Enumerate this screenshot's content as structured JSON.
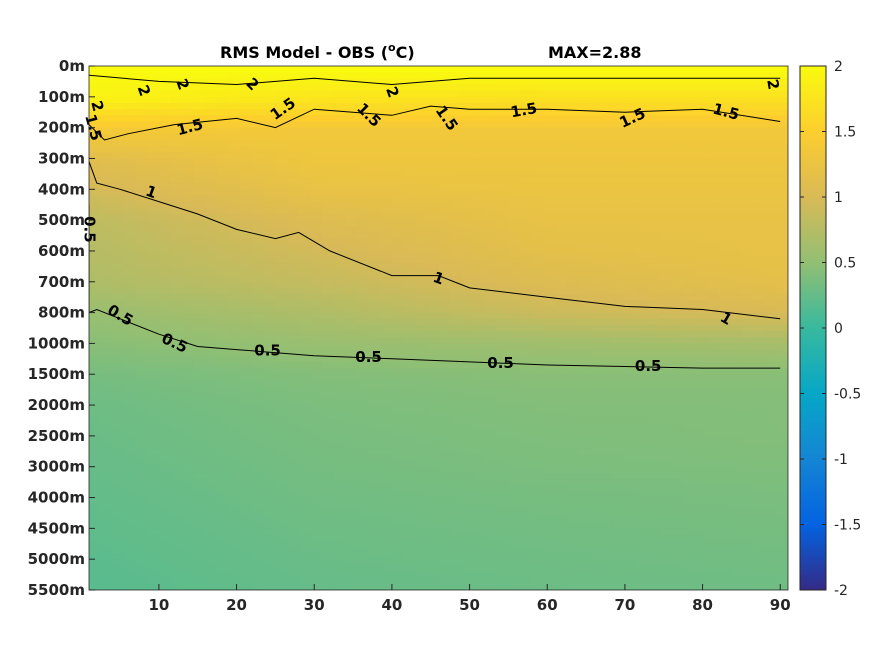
{
  "chart_data": {
    "type": "heatmap",
    "title": "RMS Model - OBS (",
    "title_unit_sup": "o",
    "title_unit_tail": "C)",
    "max_label": "MAX=2.88",
    "x_ticks": [
      10,
      20,
      30,
      40,
      50,
      60,
      70,
      80,
      90
    ],
    "xlim": [
      1,
      91
    ],
    "y_tick_labels": [
      "0m",
      "100m",
      "200m",
      "300m",
      "400m",
      "500m",
      "600m",
      "700m",
      "800m",
      "1000m",
      "1500m",
      "2000m",
      "2500m",
      "3000m",
      "4000m",
      "4500m",
      "5000m",
      "5500m"
    ],
    "colorbar": {
      "ticks": [
        2,
        1.5,
        1,
        0.5,
        0,
        -0.5,
        -1,
        -1.5,
        -2
      ],
      "tick_labels": [
        "2",
        "1.5",
        "1",
        "0.5",
        "0",
        "-0.5",
        "-1",
        "-1.5",
        "-2"
      ],
      "clim": [
        -2,
        2
      ],
      "colormap": "parula",
      "colormap_stops": [
        "#352a87",
        "#0363e1",
        "#1485d4",
        "#06a7c6",
        "#38b99e",
        "#92bf73",
        "#d9ba56",
        "#fcce2e",
        "#f9fb0e"
      ]
    },
    "field": {
      "description_levels_index": "values per depth level index 0..17 at x = 1, 30, 60, 90",
      "x_samples": [
        1,
        30,
        60,
        90
      ],
      "rows": [
        [
          2.0,
          2.0,
          2.0,
          2.0
        ],
        [
          1.9,
          1.75,
          1.7,
          1.7
        ],
        [
          1.4,
          1.35,
          1.35,
          1.35
        ],
        [
          1.1,
          1.3,
          1.3,
          1.3
        ],
        [
          0.95,
          1.2,
          1.25,
          1.25
        ],
        [
          0.8,
          1.05,
          1.2,
          1.2
        ],
        [
          0.75,
          0.95,
          1.15,
          1.2
        ],
        [
          0.7,
          0.85,
          1.05,
          1.15
        ],
        [
          0.55,
          0.7,
          0.9,
          1.0
        ],
        [
          0.45,
          0.55,
          0.6,
          0.65
        ],
        [
          0.35,
          0.42,
          0.45,
          0.45
        ],
        [
          0.3,
          0.38,
          0.42,
          0.42
        ],
        [
          0.28,
          0.36,
          0.4,
          0.42
        ],
        [
          0.26,
          0.34,
          0.38,
          0.4
        ],
        [
          0.24,
          0.32,
          0.35,
          0.37
        ],
        [
          0.22,
          0.3,
          0.33,
          0.35
        ],
        [
          0.2,
          0.28,
          0.31,
          0.33
        ],
        [
          0.18,
          0.26,
          0.29,
          0.31
        ]
      ]
    },
    "contours": [
      {
        "level": "2",
        "points": [
          [
            1,
            0.3
          ],
          [
            10,
            0.5
          ],
          [
            20,
            0.6
          ],
          [
            30,
            0.4
          ],
          [
            40,
            0.6
          ],
          [
            50,
            0.4
          ],
          [
            60,
            0.4
          ],
          [
            70,
            0.4
          ],
          [
            80,
            0.4
          ],
          [
            90,
            0.4
          ]
        ]
      },
      {
        "level": "1.5",
        "points": [
          [
            1,
            1.9
          ],
          [
            3,
            2.4
          ],
          [
            6,
            2.2
          ],
          [
            12,
            1.9
          ],
          [
            20,
            1.7
          ],
          [
            25,
            2.0
          ],
          [
            30,
            1.4
          ],
          [
            40,
            1.6
          ],
          [
            45,
            1.3
          ],
          [
            50,
            1.4
          ],
          [
            60,
            1.4
          ],
          [
            70,
            1.5
          ],
          [
            80,
            1.4
          ],
          [
            90,
            1.8
          ]
        ]
      },
      {
        "level": "1",
        "points": [
          [
            1,
            3.1
          ],
          [
            2,
            3.8
          ],
          [
            5,
            4.0
          ],
          [
            10,
            4.4
          ],
          [
            15,
            4.8
          ],
          [
            20,
            5.3
          ],
          [
            25,
            5.6
          ],
          [
            28,
            5.4
          ],
          [
            32,
            6.0
          ],
          [
            40,
            6.8
          ],
          [
            46,
            6.8
          ],
          [
            50,
            7.2
          ],
          [
            60,
            7.5
          ],
          [
            70,
            7.8
          ],
          [
            80,
            7.9
          ],
          [
            90,
            8.2
          ]
        ]
      },
      {
        "level": "0.5",
        "points": [
          [
            1,
            8.0
          ],
          [
            2,
            7.9
          ],
          [
            5,
            8.2
          ],
          [
            10,
            8.7
          ],
          [
            15,
            9.1
          ],
          [
            20,
            9.2
          ],
          [
            30,
            9.4
          ],
          [
            40,
            9.5
          ],
          [
            50,
            9.6
          ],
          [
            60,
            9.7
          ],
          [
            70,
            9.75
          ],
          [
            80,
            9.8
          ],
          [
            90,
            9.8
          ]
        ]
      },
      {
        "level": "0.5",
        "points": [
          [
            1,
            4.5
          ],
          [
            1,
            8.0
          ]
        ]
      }
    ],
    "contour_labels": [
      {
        "text": "2",
        "x": 8,
        "y": 0.8,
        "rot": 70
      },
      {
        "text": "2",
        "x": 13,
        "y": 0.6,
        "rot": 70
      },
      {
        "text": "2",
        "x": 22,
        "y": 0.6,
        "rot": 45
      },
      {
        "text": "2",
        "x": 40,
        "y": 0.85,
        "rot": 70
      },
      {
        "text": "2",
        "x": 89,
        "y": 0.6,
        "rot": 80
      },
      {
        "text": "2",
        "x": 2,
        "y": 1.3,
        "rot": 75
      },
      {
        "text": "1.5",
        "x": 1.5,
        "y": 2.0,
        "rot": 75
      },
      {
        "text": "1.5",
        "x": 14,
        "y": 2.0,
        "rot": -15
      },
      {
        "text": "1.5",
        "x": 26,
        "y": 1.4,
        "rot": -35
      },
      {
        "text": "1.5",
        "x": 37,
        "y": 1.6,
        "rot": 45
      },
      {
        "text": "1.5",
        "x": 47,
        "y": 1.7,
        "rot": 55
      },
      {
        "text": "1.5",
        "x": 57,
        "y": 1.45,
        "rot": -10
      },
      {
        "text": "1.5",
        "x": 71,
        "y": 1.7,
        "rot": -25
      },
      {
        "text": "1.5",
        "x": 83,
        "y": 1.5,
        "rot": 15
      },
      {
        "text": "1",
        "x": 9,
        "y": 4.1,
        "rot": 20
      },
      {
        "text": "1",
        "x": 46,
        "y": 6.9,
        "rot": 20
      },
      {
        "text": "1",
        "x": 83,
        "y": 8.2,
        "rot": 30
      },
      {
        "text": "0.5",
        "x": 1,
        "y": 5.3,
        "rot": 90
      },
      {
        "text": "0.5",
        "x": 5,
        "y": 8.1,
        "rot": 30
      },
      {
        "text": "0.5",
        "x": 12,
        "y": 9.0,
        "rot": 25
      },
      {
        "text": "0.5",
        "x": 24,
        "y": 9.25,
        "rot": 0
      },
      {
        "text": "0.5",
        "x": 37,
        "y": 9.45,
        "rot": 0
      },
      {
        "text": "0.5",
        "x": 54,
        "y": 9.65,
        "rot": 0
      },
      {
        "text": "0.5",
        "x": 73,
        "y": 9.75,
        "rot": 0
      }
    ]
  }
}
